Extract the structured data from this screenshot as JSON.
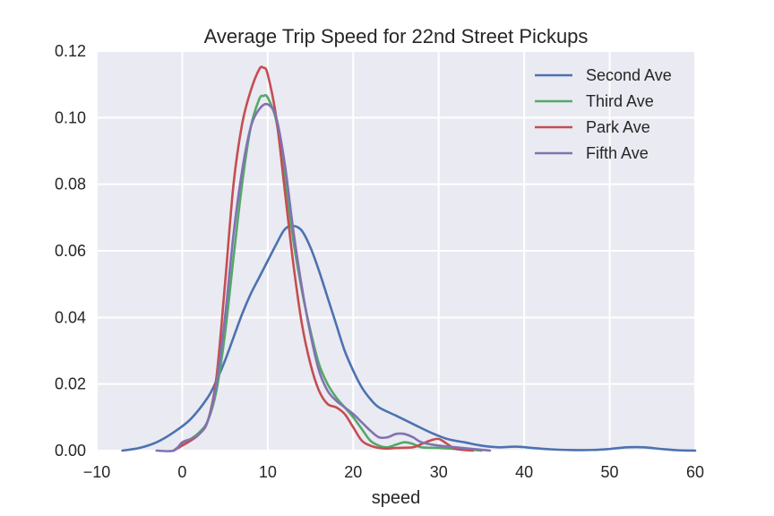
{
  "chart_data": {
    "type": "line",
    "title": "Average Trip Speed for 22nd Street Pickups",
    "xlabel": "speed",
    "ylabel": "",
    "xlim": [
      -10,
      60
    ],
    "ylim": [
      0,
      0.12
    ],
    "x_ticks": [
      "−10",
      "0",
      "10",
      "20",
      "30",
      "40",
      "50",
      "60"
    ],
    "y_ticks": [
      "0.00",
      "0.02",
      "0.04",
      "0.06",
      "0.08",
      "0.10",
      "0.12"
    ],
    "grid": true,
    "legend_position": "top-right",
    "background_color": "#EAEAF2",
    "series": [
      {
        "name": "Second Ave",
        "color": "#4C72B0",
        "points": [
          [
            -7,
            0
          ],
          [
            -5,
            0.0008
          ],
          [
            -3,
            0.0025
          ],
          [
            -1,
            0.0055
          ],
          [
            1,
            0.0095
          ],
          [
            3,
            0.016
          ],
          [
            4,
            0.021
          ],
          [
            5,
            0.027
          ],
          [
            6,
            0.034
          ],
          [
            7,
            0.041
          ],
          [
            8,
            0.047
          ],
          [
            9,
            0.052
          ],
          [
            10,
            0.057
          ],
          [
            11,
            0.062
          ],
          [
            12,
            0.0665
          ],
          [
            13,
            0.0675
          ],
          [
            14,
            0.066
          ],
          [
            15,
            0.061
          ],
          [
            16,
            0.054
          ],
          [
            17,
            0.046
          ],
          [
            18,
            0.038
          ],
          [
            19,
            0.03
          ],
          [
            20,
            0.024
          ],
          [
            21,
            0.019
          ],
          [
            22,
            0.0155
          ],
          [
            23,
            0.013
          ],
          [
            25,
            0.0105
          ],
          [
            27,
            0.008
          ],
          [
            29,
            0.0055
          ],
          [
            31,
            0.0035
          ],
          [
            33,
            0.0025
          ],
          [
            35,
            0.0015
          ],
          [
            37,
            0.001
          ],
          [
            39,
            0.0012
          ],
          [
            41,
            0.0008
          ],
          [
            43,
            0.0004
          ],
          [
            45,
            0.0002
          ],
          [
            48,
            0.0002
          ],
          [
            50,
            0.0005
          ],
          [
            52,
            0.001
          ],
          [
            54,
            0.001
          ],
          [
            56,
            0.0005
          ],
          [
            58,
            0.0001
          ],
          [
            60,
            0
          ]
        ]
      },
      {
        "name": "Third Ave",
        "color": "#55A868",
        "points": [
          [
            -1,
            0
          ],
          [
            0,
            0.002
          ],
          [
            1,
            0.0035
          ],
          [
            2,
            0.0055
          ],
          [
            3,
            0.009
          ],
          [
            4,
            0.018
          ],
          [
            5,
            0.035
          ],
          [
            6,
            0.058
          ],
          [
            7,
            0.08
          ],
          [
            8,
            0.097
          ],
          [
            9,
            0.1055
          ],
          [
            9.5,
            0.1065
          ],
          [
            10,
            0.106
          ],
          [
            11,
            0.099
          ],
          [
            12,
            0.082
          ],
          [
            13,
            0.063
          ],
          [
            14,
            0.048
          ],
          [
            15,
            0.036
          ],
          [
            16,
            0.026
          ],
          [
            17,
            0.02
          ],
          [
            18,
            0.016
          ],
          [
            19,
            0.013
          ],
          [
            20,
            0.01
          ],
          [
            21,
            0.0065
          ],
          [
            22,
            0.003
          ],
          [
            23,
            0.0015
          ],
          [
            24,
            0.001
          ],
          [
            25,
            0.0018
          ],
          [
            26,
            0.0025
          ],
          [
            27,
            0.002
          ],
          [
            28,
            0.001
          ],
          [
            30,
            0.0008
          ],
          [
            32,
            0.0005
          ],
          [
            34,
            0.0002
          ],
          [
            35,
            0
          ]
        ]
      },
      {
        "name": "Park Ave",
        "color": "#C44E52",
        "points": [
          [
            -1,
            0
          ],
          [
            0,
            0.0015
          ],
          [
            1,
            0.003
          ],
          [
            2,
            0.005
          ],
          [
            3,
            0.009
          ],
          [
            4,
            0.022
          ],
          [
            5,
            0.05
          ],
          [
            6,
            0.08
          ],
          [
            7,
            0.098
          ],
          [
            8,
            0.108
          ],
          [
            9,
            0.1145
          ],
          [
            9.5,
            0.115
          ],
          [
            10,
            0.113
          ],
          [
            11,
            0.1
          ],
          [
            12,
            0.078
          ],
          [
            13,
            0.056
          ],
          [
            14,
            0.038
          ],
          [
            15,
            0.026
          ],
          [
            16,
            0.018
          ],
          [
            17,
            0.014
          ],
          [
            18,
            0.013
          ],
          [
            19,
            0.011
          ],
          [
            20,
            0.007
          ],
          [
            21,
            0.003
          ],
          [
            22,
            0.0015
          ],
          [
            23,
            0.0008
          ],
          [
            24,
            0.0006
          ],
          [
            25,
            0.0008
          ],
          [
            27,
            0.001
          ],
          [
            28,
            0.002
          ],
          [
            29,
            0.003
          ],
          [
            30,
            0.0035
          ],
          [
            31,
            0.002
          ],
          [
            32,
            0.0005
          ],
          [
            34,
            0
          ]
        ]
      },
      {
        "name": "Fifth Ave",
        "color": "#8172B2",
        "points": [
          [
            -3,
            0
          ],
          [
            -1,
            0
          ],
          [
            0,
            0.0025
          ],
          [
            1,
            0.0035
          ],
          [
            2,
            0.005
          ],
          [
            3,
            0.009
          ],
          [
            4,
            0.02
          ],
          [
            5,
            0.04
          ],
          [
            6,
            0.065
          ],
          [
            7,
            0.084
          ],
          [
            8,
            0.097
          ],
          [
            9,
            0.1025
          ],
          [
            10,
            0.104
          ],
          [
            11,
            0.1
          ],
          [
            12,
            0.086
          ],
          [
            13,
            0.066
          ],
          [
            14,
            0.049
          ],
          [
            15,
            0.035
          ],
          [
            16,
            0.024
          ],
          [
            17,
            0.018
          ],
          [
            18,
            0.015
          ],
          [
            19,
            0.013
          ],
          [
            20,
            0.011
          ],
          [
            21,
            0.0085
          ],
          [
            22,
            0.006
          ],
          [
            23,
            0.004
          ],
          [
            24,
            0.004
          ],
          [
            25,
            0.005
          ],
          [
            26,
            0.005
          ],
          [
            27,
            0.004
          ],
          [
            28,
            0.0025
          ],
          [
            30,
            0.0015
          ],
          [
            32,
            0.001
          ],
          [
            34,
            0.0005
          ],
          [
            36,
            0
          ]
        ]
      }
    ]
  }
}
